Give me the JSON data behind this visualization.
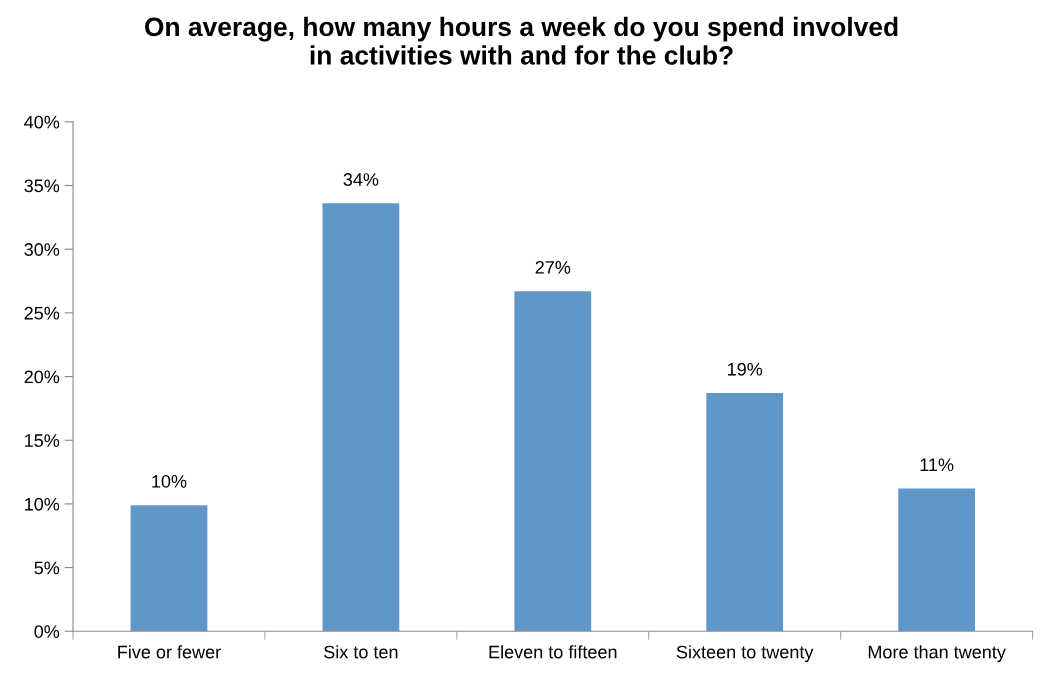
{
  "chart_data": {
    "type": "bar",
    "title": "On average, how many hours a week do you spend involved\nin activities with and for the club?",
    "categories": [
      "Five or fewer",
      "Six to ten",
      "Eleven to fifteen",
      "Sixteen to twenty",
      "More than twenty"
    ],
    "values": [
      9.9,
      33.6,
      26.7,
      18.7,
      11.2
    ],
    "value_labels": [
      "10%",
      "34%",
      "27%",
      "19%",
      "11%"
    ],
    "color": "#6197c8",
    "ylim": [
      0,
      40
    ],
    "yticks": [
      {
        "value": 0,
        "label": "0%"
      },
      {
        "value": 5,
        "label": "5%"
      },
      {
        "value": 10,
        "label": "10%"
      },
      {
        "value": 15,
        "label": "15%"
      },
      {
        "value": 20,
        "label": "20%"
      },
      {
        "value": 25,
        "label": "25%"
      },
      {
        "value": 30,
        "label": "30%"
      },
      {
        "value": 35,
        "label": "35%"
      },
      {
        "value": 40,
        "label": "40%"
      }
    ],
    "grid": false,
    "legend": false
  }
}
